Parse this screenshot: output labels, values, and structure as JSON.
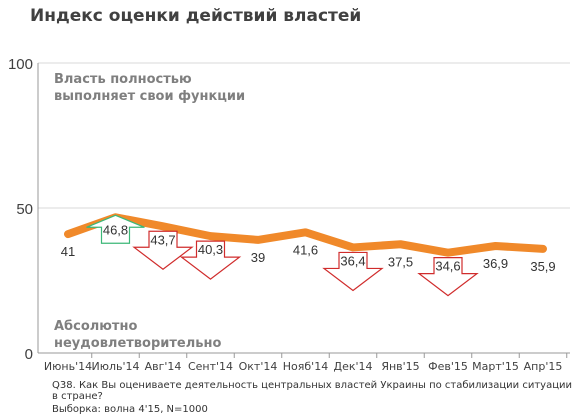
{
  "chart_data": {
    "type": "line",
    "title": "Индекс оценки действий властей",
    "ylim": [
      0,
      100
    ],
    "yticks": [
      0,
      50,
      100
    ],
    "categories": [
      "Июнь'14",
      "Июль'14",
      "Авг'14",
      "Сент'14",
      "Окт'14",
      "Нояб'14",
      "Дек'14",
      "Янв'15",
      "Фев'15",
      "Март'15",
      "Апр'15"
    ],
    "series": [
      {
        "values": [
          41,
          46.8,
          43.7,
          40.3,
          39,
          41.6,
          36.4,
          37.5,
          34.6,
          36.9,
          35.9
        ],
        "labels": [
          "41",
          "46,8",
          "43,7",
          "40,3",
          "39",
          "41,6",
          "36,4",
          "37,5",
          "34,6",
          "36,9",
          "35,9"
        ]
      }
    ],
    "annotations": {
      "top_label": [
        "Власть полностью",
        "выполняет свои функции"
      ],
      "bottom_label": [
        "Абсолютно",
        "неудовлетворительно"
      ]
    },
    "changes": [
      {
        "index": 1,
        "direction": "up"
      },
      {
        "index": 2,
        "direction": "down"
      },
      {
        "index": 3,
        "direction": "down"
      },
      {
        "index": 6,
        "direction": "down"
      },
      {
        "index": 8,
        "direction": "down"
      }
    ],
    "colors": {
      "line": "#f0892a",
      "up": "#3cb878",
      "down": "#d02c2c",
      "label_gray": "#7f7f7f",
      "axis": "#999999"
    }
  },
  "notes": {
    "question_line1": "Q38. Как Вы оцениваете деятельность центральных властей Украины по стабилизации ситуации",
    "question_line2": "в стране?",
    "sample": "Выборка: волна 4'15, N=1000"
  }
}
